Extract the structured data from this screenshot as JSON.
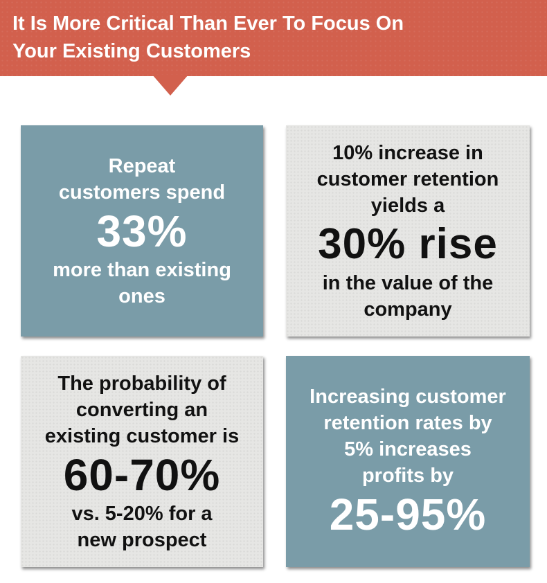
{
  "banner": {
    "title_line1": "It Is More Critical Than Ever To Focus On",
    "title_line2": "Your Existing Customers"
  },
  "cards": [
    {
      "lead_1": "Repeat",
      "lead_2": "customers spend",
      "stat": "33%",
      "tail_1": "more than existing",
      "tail_2": "ones"
    },
    {
      "lead_1": "10% increase in",
      "lead_2": "customer retention",
      "lead_3": "yields a",
      "stat": "30% rise",
      "tail_1": "in the value of the",
      "tail_2": "company"
    },
    {
      "lead_1": "The probability of",
      "lead_2": "converting an",
      "lead_3": "existing customer is",
      "stat": "60-70%",
      "tail_1": "vs. 5-20% for a",
      "tail_2": "new prospect"
    },
    {
      "lead_1": "Increasing customer",
      "lead_2": "retention rates by",
      "lead_3": "5% increases",
      "lead_4": "profits by",
      "stat": "25-95%"
    }
  ],
  "colors": {
    "banner": "#d2604d",
    "blue_card": "#7a9ca8",
    "gray_card": "#e6e6e4",
    "dark_text": "#111111",
    "light_text": "#ffffff"
  }
}
